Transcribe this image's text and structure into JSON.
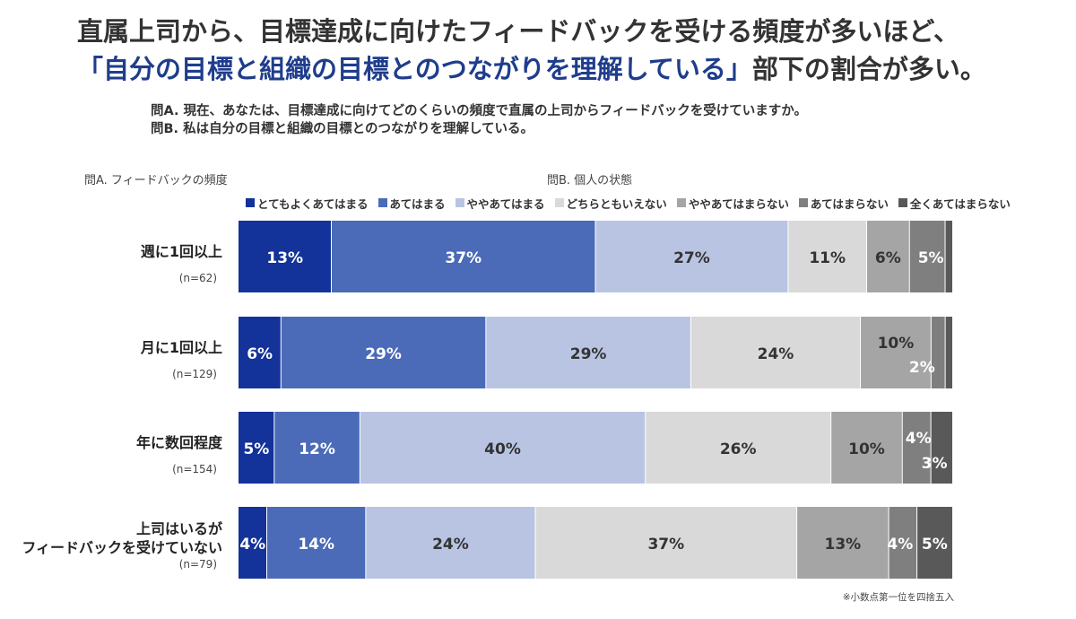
{
  "title": {
    "line1": "直属上司から、目標達成に向けたフィードバックを受ける頻度が多いほど、",
    "line2_highlight": "「自分の目標と組織の目標とのつながりを理解している」",
    "line2_tail": "部下の割合が多い。"
  },
  "questions": {
    "a": "問A. 現在、あなたは、目標達成に向けてどのくらいの頻度で直属の上司からフィードバックを受けていますか。",
    "b": "問B. 私は自分の目標と組織の目標とのつながりを理解している。"
  },
  "axis_heads": {
    "left": "問A. フィードバックの頻度",
    "right": "問B. 個人の状態"
  },
  "footnote": "※小数点第一位を四捨五入",
  "chart_data": {
    "type": "bar",
    "orientation": "horizontal-stacked-100",
    "categories": [
      {
        "name": "週に1回以上",
        "n": "(n=62)"
      },
      {
        "name": "月に1回以上",
        "n": "(n=129)"
      },
      {
        "name": "年に数回程度",
        "n": "(n=154)"
      },
      {
        "name": "上司はいるが\nフィードバックを受けていない",
        "n": "(n=79)"
      }
    ],
    "series": [
      {
        "name": "とてもよくあてはまる",
        "color": "#13339a",
        "label_color": "#ffffff",
        "values": [
          13,
          6,
          5,
          4
        ]
      },
      {
        "name": "あてはまる",
        "color": "#4b6bb8",
        "label_color": "#ffffff",
        "values": [
          37,
          29,
          12,
          14
        ]
      },
      {
        "name": "ややあてはまる",
        "color": "#b8c4e2",
        "label_color": "#333333",
        "values": [
          27,
          29,
          40,
          24
        ]
      },
      {
        "name": "どちらともいえない",
        "color": "#d9d9d9",
        "label_color": "#333333",
        "values": [
          11,
          24,
          26,
          37
        ]
      },
      {
        "name": "ややあてはまらない",
        "color": "#a5a5a5",
        "label_color": "#333333",
        "values": [
          6,
          10,
          10,
          13
        ]
      },
      {
        "name": "あてはまらない",
        "color": "#7f7f7f",
        "label_color": "#ffffff",
        "values": [
          5,
          2,
          4,
          4
        ]
      },
      {
        "name": "全くあてはまらない",
        "color": "#595959",
        "label_color": "#ffffff",
        "values": [
          1,
          1,
          3,
          5
        ]
      }
    ],
    "data_labels": [
      [
        "13%",
        "37%",
        "27%",
        "11%",
        "6%",
        "5%",
        ""
      ],
      [
        "6%",
        "29%",
        "29%",
        "24%",
        "10%",
        "2%",
        ""
      ],
      [
        "5%",
        "12%",
        "40%",
        "26%",
        "10%",
        "4%",
        "3%"
      ],
      [
        "4%",
        "14%",
        "24%",
        "37%",
        "13%",
        "4%",
        "5%"
      ]
    ],
    "unit": "%",
    "xlim": [
      0,
      100
    ]
  }
}
